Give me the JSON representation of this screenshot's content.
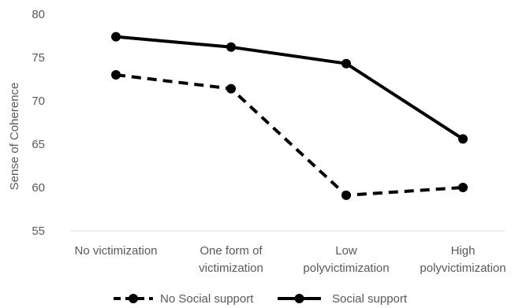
{
  "chart_data": {
    "type": "line",
    "categories": [
      [
        "No victimization"
      ],
      [
        "One form of",
        "victimization"
      ],
      [
        "Low",
        "polyvictimization"
      ],
      [
        "High",
        "polyvictimization"
      ]
    ],
    "series": [
      {
        "name": "No Social support",
        "values": [
          73.0,
          71.4,
          59.1,
          60.0
        ],
        "style": "dashed",
        "color": "#000000"
      },
      {
        "name": "Social support",
        "values": [
          77.4,
          76.2,
          74.3,
          65.6
        ],
        "style": "solid",
        "color": "#000000"
      }
    ],
    "ylabel": "Sense of Coherence",
    "ylim": [
      55,
      80
    ],
    "yticks": [
      55,
      60,
      65,
      70,
      75,
      80
    ],
    "grid": false,
    "legend": "bottom",
    "axis_color": "#d9d9d9",
    "text_color": "#595959"
  }
}
